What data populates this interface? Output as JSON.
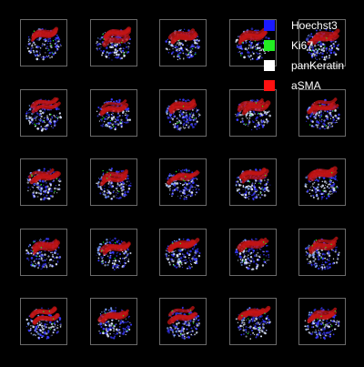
{
  "legend": {
    "items": [
      {
        "label": "Hoechst3",
        "color": "#1a1aff"
      },
      {
        "label": "Ki67",
        "color": "#22ee22"
      },
      {
        "label": "panKeratin",
        "color": "#ffffff"
      },
      {
        "label": "aSMA",
        "color": "#ff1111"
      }
    ]
  },
  "grid": {
    "rows": 5,
    "cols": 5
  },
  "colors": {
    "background": "#000000",
    "tile_border": "#6a6a6a",
    "nuclei": "#3a3aff",
    "proliferation": "#22ee22",
    "epithelium": "#dfe8ff",
    "smooth_muscle": "#c41414"
  }
}
